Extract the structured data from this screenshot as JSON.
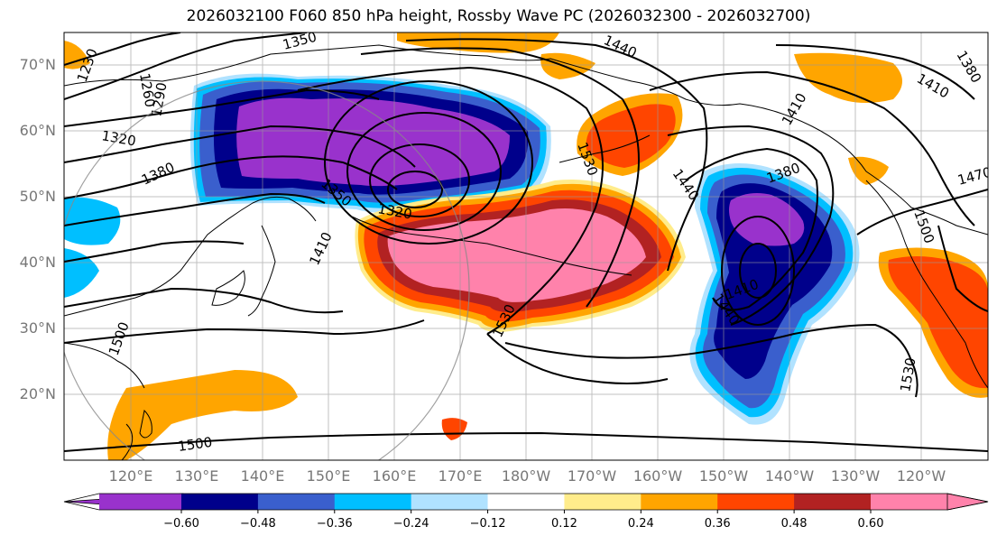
{
  "title": "2026032100 F060 850 hPa height, Rossby Wave PC (2026032300 - 2026032700)",
  "map": {
    "lat_ticks": [
      "70°N",
      "60°N",
      "50°N",
      "40°N",
      "30°N",
      "20°N"
    ],
    "lon_ticks": [
      "120°E",
      "130°E",
      "140°E",
      "150°E",
      "160°E",
      "170°E",
      "180°W",
      "170°W",
      "160°W",
      "150°W",
      "140°W",
      "130°W",
      "120°W"
    ],
    "height_contour_labels": [
      {
        "text": "1230"
      },
      {
        "text": "1260"
      },
      {
        "text": "1290"
      },
      {
        "text": "1320"
      },
      {
        "text": "1350"
      },
      {
        "text": "1380"
      },
      {
        "text": "1350"
      },
      {
        "text": "1320"
      },
      {
        "text": "1410"
      },
      {
        "text": "1440"
      },
      {
        "text": "1530"
      },
      {
        "text": "1440"
      },
      {
        "text": "1380"
      },
      {
        "text": "1410"
      },
      {
        "text": "1410"
      },
      {
        "text": "1440"
      },
      {
        "text": "1530"
      },
      {
        "text": "1500"
      },
      {
        "text": "1530"
      },
      {
        "text": "1500"
      },
      {
        "text": "1500"
      },
      {
        "text": "1470"
      },
      {
        "text": "1380"
      },
      {
        "text": "1410"
      }
    ]
  },
  "colorbar": {
    "bins": [
      {
        "color": "#9932cc"
      },
      {
        "color": "#00008b"
      },
      {
        "color": "#3a5fcd"
      },
      {
        "color": "#00bfff"
      },
      {
        "color": "#b0e2ff"
      },
      {
        "color": "#ffffff"
      },
      {
        "color": "#ffec8b"
      },
      {
        "color": "#ffa500"
      },
      {
        "color": "#ff4500"
      },
      {
        "color": "#b22222"
      },
      {
        "color": "#ff82ab"
      }
    ],
    "tick_labels": [
      "−0.60",
      "−0.48",
      "−0.36",
      "−0.24",
      "−0.12",
      "0.12",
      "0.24",
      "0.36",
      "0.48",
      "0.60"
    ]
  }
}
